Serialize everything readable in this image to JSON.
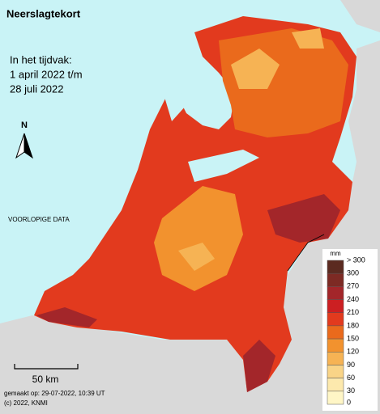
{
  "header": {
    "title": "Neerslagtekort",
    "period": [
      "In het tijdvak:",
      "1 april 2022 t/m",
      "28 juli 2022"
    ]
  },
  "north": "N",
  "notice": "VOORLOPIGE DATA",
  "scale_bar": "50 km",
  "footer": [
    "gemaakt op: 29-07-2022, 10:39 UT",
    "(c) 2022, KNMI"
  ],
  "legend": {
    "unit": "mm",
    "labels": [
      "> 300",
      "300",
      "270",
      "240",
      "210",
      "180",
      "150",
      "120",
      "90",
      "60",
      "30",
      "0"
    ],
    "colors": [
      "#5b2a20",
      "#7d2a24",
      "#a3262a",
      "#cc1f22",
      "#e23a1e",
      "#ea6a1c",
      "#f2922e",
      "#f6b354",
      "#f9d487",
      "#fde9ad",
      "#fff6c6",
      "#fff23a"
    ]
  }
}
